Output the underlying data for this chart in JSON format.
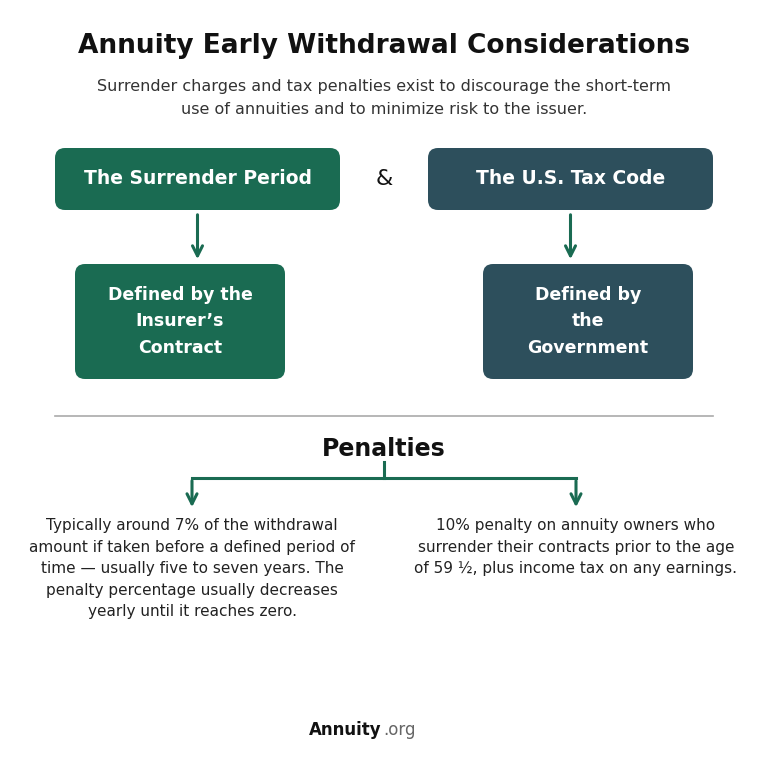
{
  "title": "Annuity Early Withdrawal Considerations",
  "subtitle": "Surrender charges and tax penalties exist to discourage the short-term\nuse of annuities and to minimize risk to the issuer.",
  "box1_title": "The Surrender Period",
  "box2_title": "The U.S. Tax Code",
  "ampersand": "&",
  "box3_title": "Defined by the\nInsurer’s\nContract",
  "box4_title": "Defined by\nthe\nGovernment",
  "penalties_title": "Penalties",
  "penalty1_text": "Typically around 7% of the withdrawal\namount if taken before a defined period of\ntime — usually five to seven years. The\npenalty percentage usually decreases\nyearly until it reaches zero.",
  "penalty2_text": "10% penalty on annuity owners who\nsurrender their contracts prior to the age\nof 59 ½, plus income tax on any earnings.",
  "footer_bold": "Annuity",
  "footer_light": ".org",
  "bg_color": "#ffffff",
  "box1_color": "#1a6b52",
  "box2_color": "#2d4f5c",
  "box3_color": "#1a6b52",
  "box4_color": "#2d4f5c",
  "arrow_color": "#1a6b52",
  "title_color": "#111111",
  "subtitle_color": "#333333",
  "penalties_color": "#111111",
  "body_text_color": "#222222",
  "divider_color": "#aaaaaa"
}
